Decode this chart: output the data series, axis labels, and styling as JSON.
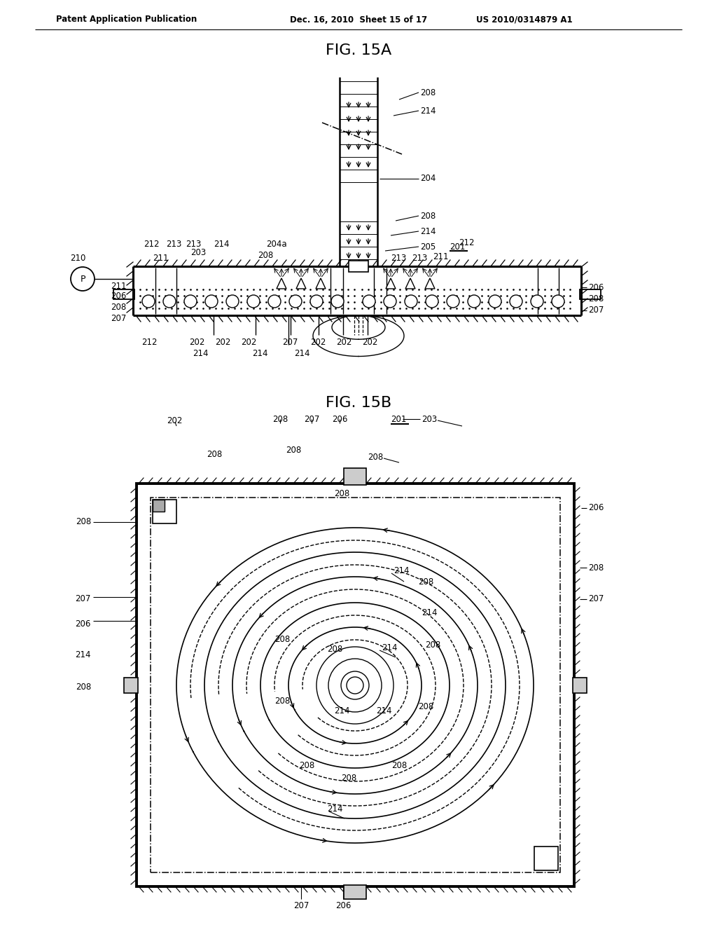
{
  "bg_color": "#ffffff",
  "line_color": "#000000",
  "header_left": "Patent Application Publication",
  "header_mid": "Dec. 16, 2010  Sheet 15 of 17",
  "header_right": "US 2010/0314879 A1",
  "fig_title_a": "FIG. 15A",
  "fig_title_b": "FIG. 15B"
}
